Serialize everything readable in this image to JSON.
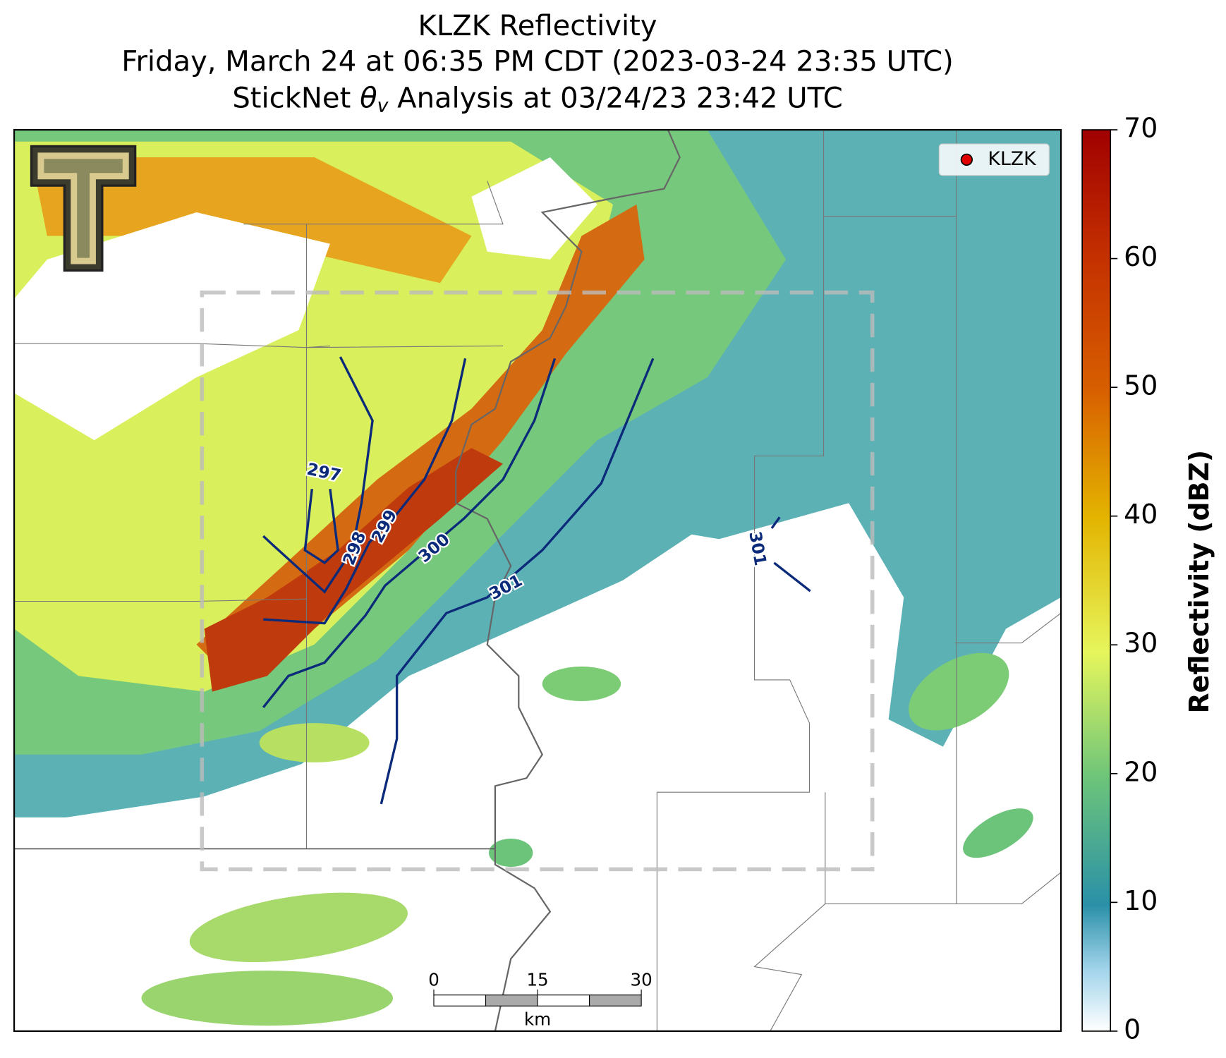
{
  "title": {
    "line1": "KLZK Reflectivity",
    "line2": "Friday, March 24 at 06:35 PM CDT (2023-03-24 23:35 UTC)",
    "line3": {
      "before": "StickNet ",
      "symbol": "θ",
      "subscript": "v",
      "after": " Analysis at 03/24/23 23:42 UTC"
    }
  },
  "legend": {
    "label": "KLZK",
    "color": "#e00000"
  },
  "colorbar": {
    "label": "Reflectivity (dBZ)",
    "lim": [
      0,
      70
    ],
    "ticks": [
      0,
      10,
      20,
      30,
      40,
      50,
      60,
      70
    ]
  },
  "contours": [
    {
      "level": 297
    },
    {
      "level": 298
    },
    {
      "level": 299
    },
    {
      "level": 300
    },
    {
      "level": 301
    },
    {
      "level": 301
    }
  ],
  "scale_bar": {
    "ticks": [
      0,
      15,
      30
    ],
    "unit": "km"
  }
}
